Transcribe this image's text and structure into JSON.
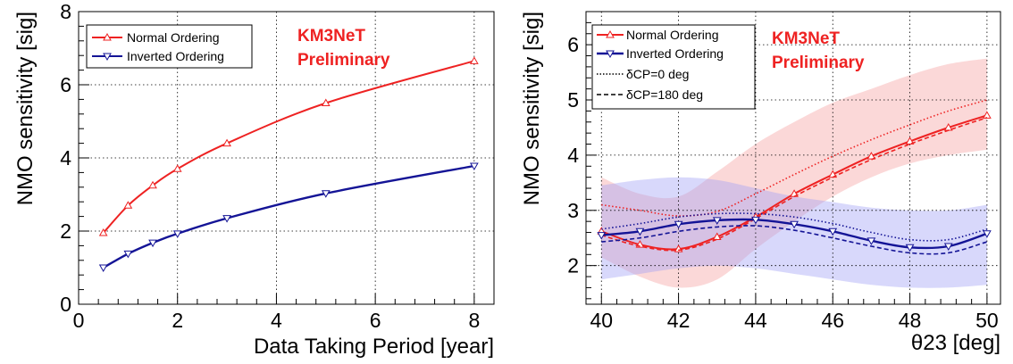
{
  "chart_data": [
    {
      "type": "line",
      "title": "",
      "xlabel": "Data Taking Period [year]",
      "ylabel": "NMO sensitivity [sig]",
      "xlim": [
        0,
        8.4
      ],
      "ylim": [
        0,
        8
      ],
      "xticks": [
        "0",
        "2",
        "4",
        "6",
        "8"
      ],
      "yticks": [
        "0",
        "2",
        "4",
        "6",
        "8"
      ],
      "grid": true,
      "legend_position": "top-left",
      "annotation": [
        "KM3NeT",
        "Preliminary"
      ],
      "colors": {
        "normal": "#ee2222",
        "inverted": "#141496",
        "annotation": "#ee2222"
      },
      "series": [
        {
          "name": "Normal Ordering",
          "marker": "triangle-up",
          "x": [
            0.5,
            1,
            1.5,
            2,
            3,
            5,
            8
          ],
          "y": [
            1.95,
            2.7,
            3.25,
            3.7,
            4.4,
            5.5,
            6.65
          ]
        },
        {
          "name": "Inverted Ordering",
          "marker": "triangle-down",
          "x": [
            0.5,
            1,
            1.5,
            2,
            3,
            5,
            8
          ],
          "y": [
            1.0,
            1.38,
            1.68,
            1.93,
            2.35,
            3.03,
            3.78
          ]
        }
      ]
    },
    {
      "type": "line",
      "title": "",
      "xlabel": "θ23 [deg]",
      "ylabel": "NMO sensitivity [sig]",
      "xlim": [
        39.6,
        50.35
      ],
      "ylim": [
        1.3,
        6.6
      ],
      "xticks": [
        "40",
        "42",
        "44",
        "46",
        "48",
        "50"
      ],
      "yticks": [
        "2",
        "3",
        "4",
        "5",
        "6"
      ],
      "grid": true,
      "legend_position": "top-left",
      "annotation": [
        "KM3NeT",
        "Preliminary"
      ],
      "legend_extra": [
        "δCP=0 deg",
        "δCP=180 deg"
      ],
      "colors": {
        "normal": "#ee2222",
        "inverted": "#141496",
        "normal_band": "#f5a3a3",
        "inverted_band": "#a3a3f5",
        "annotation": "#ee2222"
      },
      "bands": [
        {
          "series": "Normal Ordering",
          "x": [
            40,
            41,
            42,
            43,
            44,
            45,
            46,
            47,
            48,
            49,
            50
          ],
          "low": [
            2.15,
            1.8,
            1.6,
            1.75,
            2.3,
            2.8,
            3.25,
            3.6,
            3.85,
            4.0,
            4.1
          ],
          "high": [
            3.6,
            3.3,
            3.25,
            3.7,
            4.2,
            4.6,
            4.95,
            5.2,
            5.45,
            5.65,
            5.75
          ]
        },
        {
          "series": "Inverted Ordering",
          "x": [
            40,
            41,
            42,
            43,
            44,
            45,
            46,
            47,
            48,
            49,
            50
          ],
          "low": [
            1.75,
            1.85,
            1.95,
            2.0,
            1.95,
            1.85,
            1.75,
            1.65,
            1.6,
            1.6,
            1.65
          ],
          "high": [
            3.45,
            3.55,
            3.6,
            3.55,
            3.4,
            3.25,
            3.15,
            3.05,
            3.0,
            3.0,
            3.1
          ]
        }
      ],
      "series": [
        {
          "name": "Normal Ordering",
          "marker": "triangle-up",
          "x": [
            40,
            41,
            42,
            43,
            44,
            45,
            46,
            47,
            48,
            49,
            50
          ],
          "y": [
            2.62,
            2.38,
            2.3,
            2.52,
            2.88,
            3.3,
            3.65,
            3.98,
            4.25,
            4.5,
            4.72
          ]
        },
        {
          "name": "Normal Ordering δCP=0 deg",
          "dash": "dotted",
          "x": [
            40,
            41,
            42,
            43,
            44,
            45,
            46,
            47,
            48,
            49,
            50
          ],
          "y": [
            3.1,
            3.0,
            2.9,
            2.98,
            3.3,
            3.65,
            3.98,
            4.28,
            4.55,
            4.8,
            5.0
          ]
        },
        {
          "name": "Normal Ordering δCP=180 deg",
          "dash": "dashed",
          "x": [
            40,
            41,
            42,
            43,
            44,
            45,
            46,
            47,
            48,
            49,
            50
          ],
          "y": [
            2.55,
            2.35,
            2.28,
            2.48,
            2.85,
            3.25,
            3.6,
            3.92,
            4.2,
            4.45,
            4.68
          ]
        },
        {
          "name": "Inverted Ordering",
          "marker": "triangle-down",
          "x": [
            40,
            41,
            42,
            43,
            44,
            45,
            46,
            47,
            48,
            49,
            50
          ],
          "y": [
            2.55,
            2.62,
            2.75,
            2.82,
            2.83,
            2.75,
            2.62,
            2.45,
            2.33,
            2.35,
            2.58
          ]
        },
        {
          "name": "Inverted Ordering δCP=0 deg",
          "dash": "dotted",
          "x": [
            40,
            41,
            42,
            43,
            44,
            45,
            46,
            47,
            48,
            49,
            50
          ],
          "y": [
            2.66,
            2.76,
            2.88,
            2.94,
            2.94,
            2.88,
            2.76,
            2.6,
            2.47,
            2.47,
            2.66
          ]
        },
        {
          "name": "Inverted Ordering δCP=180 deg",
          "dash": "dashed",
          "x": [
            40,
            41,
            42,
            43,
            44,
            45,
            46,
            47,
            48,
            49,
            50
          ],
          "y": [
            2.43,
            2.5,
            2.62,
            2.7,
            2.72,
            2.64,
            2.5,
            2.35,
            2.23,
            2.23,
            2.43
          ]
        }
      ]
    }
  ]
}
